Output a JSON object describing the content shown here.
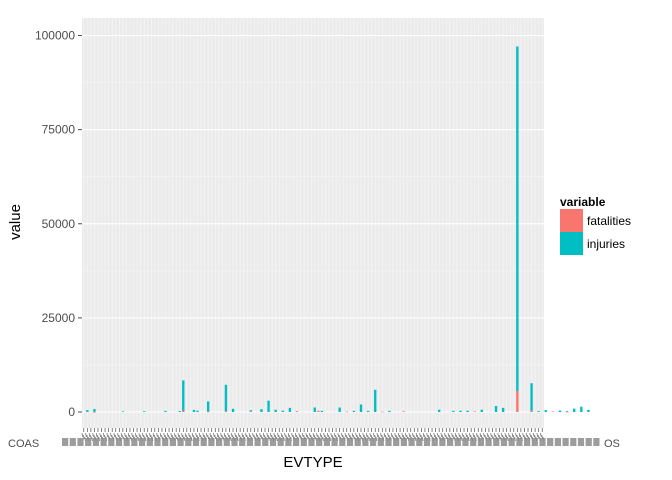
{
  "chart_data": {
    "type": "bar",
    "xlabel": "EVTYPE",
    "ylabel": "value",
    "ylim": [
      0,
      102000
    ],
    "y_ticks": [
      "0",
      "25000",
      "50000",
      "75000",
      "100000"
    ],
    "grid": true,
    "theme": "ggplot2-grey",
    "bar_mode": "stacked",
    "legend": {
      "title": "variable",
      "position": "right",
      "entries": [
        {
          "name": "fatalities",
          "color": "#F8766D"
        },
        {
          "name": "injuries",
          "color": "#00BFC4"
        }
      ]
    },
    "category_count": 130,
    "category_labels_visible": {
      "left": "COAS",
      "right": "OS"
    },
    "series": [
      {
        "name": "fatalities",
        "color": "#F8766D",
        "values": [
          [
            3,
            30
          ],
          [
            28,
            400
          ],
          [
            35,
            120
          ],
          [
            40,
            220
          ],
          [
            47,
            180
          ],
          [
            60,
            200
          ],
          [
            66,
            320
          ],
          [
            74,
            120
          ],
          [
            84,
            100
          ],
          [
            90,
            200
          ],
          [
            110,
            150
          ],
          [
            122,
            5600
          ],
          [
            126,
            350
          ],
          [
            132,
            150
          ],
          [
            136,
            80
          ]
        ]
      },
      {
        "name": "injuries",
        "color": "#00BFC4",
        "values": [
          [
            1,
            500
          ],
          [
            3,
            770
          ],
          [
            11,
            150
          ],
          [
            17,
            200
          ],
          [
            23,
            300
          ],
          [
            27,
            250
          ],
          [
            28,
            8000
          ],
          [
            31,
            550
          ],
          [
            32,
            350
          ],
          [
            35,
            2700
          ],
          [
            40,
            7000
          ],
          [
            42,
            850
          ],
          [
            47,
            300
          ],
          [
            50,
            750
          ],
          [
            52,
            3000
          ],
          [
            54,
            600
          ],
          [
            56,
            350
          ],
          [
            58,
            1100
          ],
          [
            65,
            1200
          ],
          [
            67,
            300
          ],
          [
            72,
            1200
          ],
          [
            76,
            300
          ],
          [
            78,
            2000
          ],
          [
            80,
            300
          ],
          [
            82,
            5900
          ],
          [
            86,
            300
          ],
          [
            100,
            600
          ],
          [
            104,
            300
          ],
          [
            106,
            350
          ],
          [
            108,
            350
          ],
          [
            112,
            600
          ],
          [
            116,
            1600
          ],
          [
            118,
            1100
          ],
          [
            122,
            91500
          ],
          [
            126,
            7300
          ],
          [
            128,
            250
          ],
          [
            130,
            500
          ],
          [
            134,
            400
          ],
          [
            136,
            200
          ],
          [
            138,
            900
          ],
          [
            140,
            1400
          ],
          [
            142,
            600
          ]
        ]
      }
    ]
  }
}
